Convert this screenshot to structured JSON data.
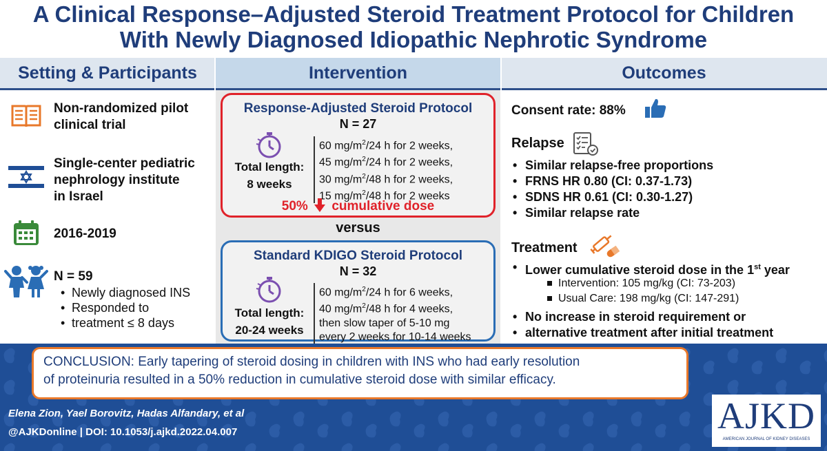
{
  "title": {
    "line1": "A Clinical Response–Adjusted Steroid Treatment Protocol for Children",
    "line2": "With Newly Diagnosed Idiopathic Nephrotic Syndrome"
  },
  "columns": {
    "setting": "Setting & Participants",
    "intervention": "Intervention",
    "outcomes": "Outcomes"
  },
  "setting": {
    "trial_line1": "Non-randomized pilot",
    "trial_line2": "clinical trial",
    "center_line1": "Single-center pediatric",
    "center_line2": "nephrology institute",
    "center_line3": "in Israel",
    "years": "2016-2019",
    "n": "N = 59",
    "bullets": [
      "Newly diagnosed INS",
      "Responded to",
      "treatment ≤ 8 days"
    ]
  },
  "intervention": {
    "adjusted": {
      "title": "Response-Adjusted Steroid Protocol",
      "n": "N = 27",
      "total_label": "Total length:",
      "total_value": "8 weeks",
      "doses": [
        {
          "dose": "60 mg/m",
          "unit": "/24 h for 2 weeks,"
        },
        {
          "dose": "45 mg/m",
          "unit": "/24 h for 2 weeks,"
        },
        {
          "dose": "30 mg/m",
          "unit": "/48 h for 2 weeks,"
        },
        {
          "dose": "15 mg/m",
          "unit": "/48 h for 2 weeks"
        }
      ],
      "cum_pct": "50%",
      "cum_text": "cumulative dose"
    },
    "versus": "versus",
    "standard": {
      "title": "Standard KDIGO Steroid Protocol",
      "n": "N = 32",
      "total_label": "Total length:",
      "total_value": "20-24 weeks",
      "doses": [
        {
          "dose": "60 mg/m",
          "unit": "/24 h for 6 weeks,"
        },
        {
          "dose": "40 mg/m",
          "unit": "/48 h for 4 weeks,"
        },
        {
          "dose": "then slow taper of 5-10 mg",
          "unit": ""
        },
        {
          "dose": "every 2 weeks for 10-14 weeks",
          "unit": ""
        }
      ]
    },
    "superscript": "2"
  },
  "outcomes": {
    "consent": "Consent rate: 88%",
    "relapse_heading": "Relapse",
    "relapse_items": [
      "Similar relapse-free proportions",
      "FRNS HR 0.80 (CI: 0.37-1.73)",
      "SDNS HR 0.61 (CI: 0.30-1.27)",
      "Similar relapse rate"
    ],
    "treatment_heading": "Treatment",
    "lower_dose": "Lower cumulative steroid dose in the 1",
    "lower_dose_sup": "st",
    "lower_dose_end": " year",
    "sub_items": [
      "Intervention: 105 mg/kg (CI: 73-203)",
      "Usual Care: 198 mg/kg  (CI: 147-291)"
    ],
    "no_increase_1": "No increase in steroid requirement or",
    "no_increase_2": "alternative treatment after initial treatment"
  },
  "conclusion": {
    "label": "CONCLUSION:",
    "text1": " Early tapering of steroid dosing in children with INS who had early resolution",
    "text2": "of proteinuria resulted in a 50% reduction in cumulative steroid dose with similar efficacy."
  },
  "footer": {
    "authors": "Elena Zion, Yael Borovitz, Hadas Alfandary, et al",
    "doi": "@AJKDonline | DOI: 10.1053/j.ajkd.2022.04.007",
    "logo_main": "AJKD",
    "logo_sub": "AMERICAN JOURNAL OF KIDNEY DISEASES"
  },
  "colors": {
    "navy": "#1f3d7a",
    "red": "#e0222a",
    "blue": "#2a6db5",
    "orange": "#e8782a",
    "purple": "#7b4fb0",
    "green": "#3a8a3a"
  }
}
